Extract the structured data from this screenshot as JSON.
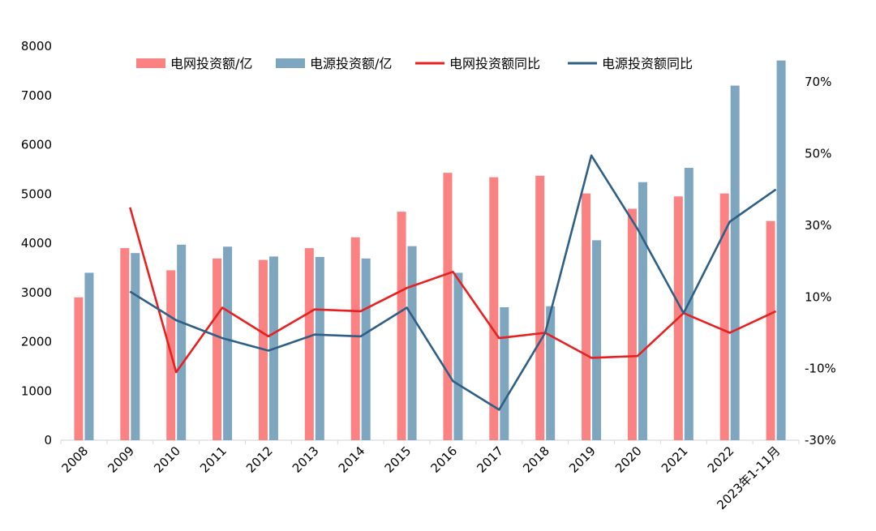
{
  "chart_data": {
    "type": "bar",
    "categories": [
      "2008",
      "2009",
      "2010",
      "2011",
      "2012",
      "2013",
      "2014",
      "2015",
      "2016",
      "2017",
      "2018",
      "2019",
      "2020",
      "2021",
      "2022",
      "2023年1-11月"
    ],
    "series": [
      {
        "name": "电网投资额/亿",
        "type": "bar",
        "axis": "left",
        "color": "#fb8282",
        "values": [
          2900,
          3900,
          3450,
          3690,
          3660,
          3900,
          4120,
          4640,
          5430,
          5340,
          5370,
          5010,
          4700,
          4950,
          5010,
          4450
        ]
      },
      {
        "name": "电源投资额/亿",
        "type": "bar",
        "axis": "left",
        "color": "#7fa6bf",
        "values": [
          3400,
          3800,
          3970,
          3930,
          3730,
          3720,
          3690,
          3940,
          3400,
          2700,
          2720,
          4060,
          5240,
          5530,
          7200,
          7710
        ]
      },
      {
        "name": "电网投资额同比",
        "type": "line",
        "axis": "right",
        "color": "#e8201f",
        "values": [
          null,
          0.35,
          -0.11,
          0.07,
          -0.01,
          0.065,
          0.06,
          0.125,
          0.17,
          -0.015,
          0.0,
          -0.07,
          -0.065,
          0.055,
          0.0,
          0.06
        ]
      },
      {
        "name": "电源投资额同比",
        "type": "line",
        "axis": "right",
        "color": "#2e5f86",
        "values": [
          null,
          0.115,
          0.035,
          -0.015,
          -0.05,
          -0.005,
          -0.01,
          0.07,
          -0.135,
          -0.215,
          0.0,
          0.495,
          0.29,
          0.055,
          0.31,
          0.4
        ]
      }
    ],
    "ylim_left": [
      0,
      8000
    ],
    "yticks_left": [
      "0",
      "1000",
      "2000",
      "3000",
      "4000",
      "5000",
      "6000",
      "7000",
      "8000"
    ],
    "ylim_right": [
      -0.3,
      0.8
    ],
    "yticks_right": [
      {
        "value": -0.3,
        "label": "-30%"
      },
      {
        "value": -0.1,
        "label": "-10%"
      },
      {
        "value": 0.1,
        "label": "10%"
      },
      {
        "value": 0.3,
        "label": "30%"
      },
      {
        "value": 0.5,
        "label": "50%"
      },
      {
        "value": 0.7,
        "label": "70%"
      }
    ],
    "legend_position": "top",
    "grid": false
  }
}
